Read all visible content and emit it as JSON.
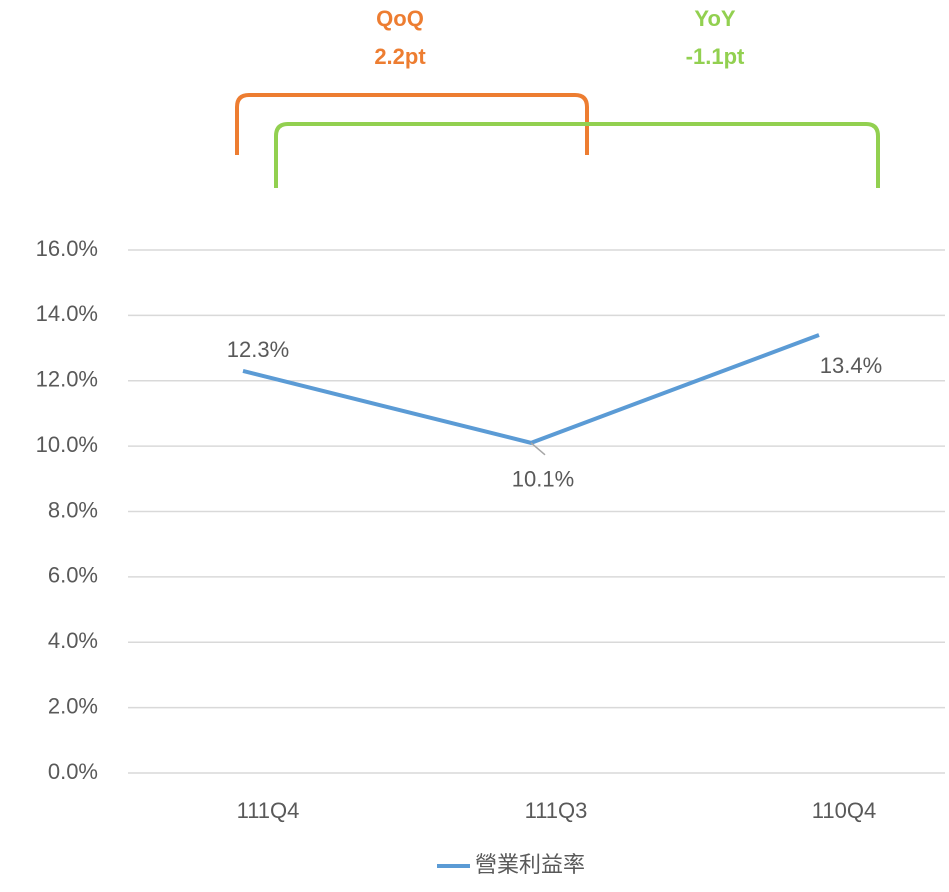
{
  "chart_data": {
    "type": "line",
    "categories": [
      "111Q4",
      "111Q3",
      "110Q4"
    ],
    "series": [
      {
        "name": "營業利益率",
        "color": "#5b9bd5",
        "values": [
          12.3,
          10.1,
          13.4
        ],
        "value_labels": [
          "12.3%",
          "10.1%",
          "13.4%"
        ]
      }
    ],
    "ylim": [
      0,
      16
    ],
    "yticks": [
      {
        "value": 0,
        "label": "0.0%"
      },
      {
        "value": 2,
        "label": "2.0%"
      },
      {
        "value": 4,
        "label": "4.0%"
      },
      {
        "value": 6,
        "label": "6.0%"
      },
      {
        "value": 8,
        "label": "8.0%"
      },
      {
        "value": 10,
        "label": "10.0%"
      },
      {
        "value": 12,
        "label": "12.0%"
      },
      {
        "value": 14,
        "label": "14.0%"
      },
      {
        "value": 16,
        "label": "16.0%"
      }
    ],
    "grid": true,
    "legend": "bottom",
    "annotations": [
      {
        "label": "QoQ",
        "value": "2.2pt",
        "color": "#ed7d31"
      },
      {
        "label": "YoY",
        "value": "-1.1pt",
        "color": "#92d050"
      }
    ]
  }
}
